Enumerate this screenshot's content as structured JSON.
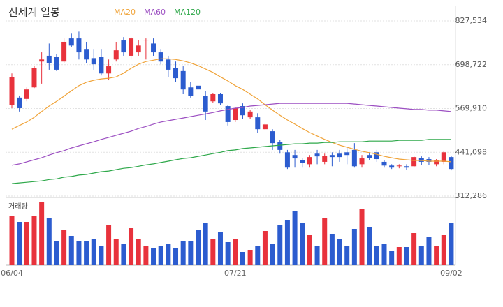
{
  "chart_data": {
    "type": "candlestick",
    "title": "신세계 일봉",
    "volume_label": "거래량",
    "up_color": "#e8323c",
    "down_color": "#2c5ccf",
    "categories": [
      "06/04",
      null,
      null,
      null,
      null,
      null,
      null,
      null,
      null,
      null,
      null,
      null,
      null,
      null,
      null,
      null,
      null,
      null,
      null,
      null,
      null,
      null,
      null,
      null,
      null,
      null,
      null,
      null,
      null,
      null,
      "07/21",
      null,
      null,
      null,
      null,
      null,
      null,
      null,
      null,
      null,
      null,
      null,
      null,
      null,
      null,
      null,
      null,
      null,
      null,
      null,
      null,
      null,
      null,
      null,
      null,
      null,
      null,
      null,
      null,
      "09/02"
    ],
    "open": [
      581000,
      602000,
      598000,
      632000,
      708000,
      725000,
      721000,
      708000,
      776000,
      776000,
      745000,
      718000,
      721000,
      673000,
      714000,
      770000,
      725000,
      735000,
      770000,
      761000,
      735000,
      714000,
      688000,
      680000,
      632000,
      637000,
      606000,
      591000,
      612000,
      577000,
      536000,
      577000,
      544000,
      544000,
      509000,
      503000,
      472000,
      441000,
      433000,
      417000,
      406000,
      437000,
      413000,
      433000,
      437000,
      441000,
      448000,
      406000,
      433000,
      441000,
      413000,
      402000,
      400000,
      400000,
      400000,
      425000,
      421000,
      406000,
      413000,
      427000
    ],
    "high": [
      673000,
      608000,
      632000,
      694000,
      735000,
      761000,
      729000,
      776000,
      790000,
      796000,
      766000,
      745000,
      745000,
      714000,
      766000,
      780000,
      780000,
      770000,
      776000,
      776000,
      745000,
      725000,
      708000,
      694000,
      647000,
      643000,
      622000,
      616000,
      616000,
      581000,
      575000,
      585000,
      565000,
      556000,
      527000,
      509000,
      478000,
      448000,
      448000,
      425000,
      433000,
      448000,
      437000,
      441000,
      448000,
      454000,
      468000,
      433000,
      441000,
      448000,
      417000,
      406000,
      406000,
      406000,
      431000,
      429000,
      427000,
      421000,
      445000,
      431000
    ],
    "low": [
      571000,
      561000,
      591000,
      630000,
      643000,
      684000,
      680000,
      704000,
      751000,
      714000,
      704000,
      684000,
      667000,
      653000,
      708000,
      725000,
      714000,
      725000,
      714000,
      725000,
      700000,
      663000,
      647000,
      612000,
      602000,
      622000,
      536000,
      587000,
      581000,
      520000,
      530000,
      540000,
      540000,
      499000,
      505000,
      448000,
      437000,
      392000,
      396000,
      396000,
      396000,
      406000,
      406000,
      400000,
      413000,
      406000,
      396000,
      396000,
      417000,
      413000,
      396000,
      392000,
      394000,
      390000,
      396000,
      404000,
      404000,
      400000,
      406000,
      388000
    ],
    "close": [
      663000,
      571000,
      626000,
      688000,
      714000,
      704000,
      684000,
      766000,
      755000,
      735000,
      714000,
      700000,
      673000,
      694000,
      741000,
      735000,
      776000,
      755000,
      772000,
      735000,
      708000,
      684000,
      659000,
      626000,
      606000,
      626000,
      561000,
      612000,
      585000,
      530000,
      571000,
      550000,
      561000,
      509000,
      523000,
      468000,
      448000,
      396000,
      423000,
      409000,
      427000,
      429000,
      431000,
      427000,
      427000,
      433000,
      400000,
      423000,
      425000,
      421000,
      402000,
      396000,
      402000,
      396000,
      427000,
      413000,
      413000,
      417000,
      441000,
      392000
    ],
    "volume": [
      71,
      62,
      62,
      71,
      90,
      68,
      35,
      50,
      42,
      35,
      35,
      38,
      28,
      57,
      38,
      30,
      53,
      38,
      28,
      25,
      28,
      31,
      25,
      35,
      35,
      50,
      61,
      38,
      47,
      33,
      38,
      19,
      22,
      27,
      49,
      31,
      58,
      64,
      77,
      60,
      43,
      28,
      67,
      45,
      37,
      28,
      52,
      80,
      55,
      28,
      31,
      20,
      26,
      26,
      46,
      28,
      40,
      28,
      43,
      60
    ],
    "volume_ylim": [
      0,
      90
    ],
    "series": [
      {
        "name": "MA20",
        "color": "#f0a43a",
        "values": [
          509000,
          520000,
          530000,
          544000,
          561000,
          577000,
          591000,
          606000,
          622000,
          637000,
          647000,
          653000,
          657000,
          659000,
          663000,
          674000,
          688000,
          700000,
          708000,
          712000,
          716000,
          716000,
          714000,
          710000,
          704000,
          696000,
          686000,
          676000,
          663000,
          651000,
          637000,
          626000,
          612000,
          598000,
          581000,
          565000,
          550000,
          536000,
          524000,
          511000,
          499000,
          489000,
          479000,
          470000,
          462000,
          456000,
          450000,
          444000,
          440000,
          435000,
          429000,
          425000,
          421000,
          419000,
          417000,
          417000,
          415000,
          415000,
          415000,
          413000
        ]
      },
      {
        "name": "MA60",
        "color": "#9c4fc2",
        "values": [
          403000,
          407000,
          413000,
          419000,
          425000,
          433000,
          440000,
          446000,
          454000,
          460000,
          466000,
          472000,
          479000,
          485000,
          491000,
          497000,
          503000,
          511000,
          517000,
          524000,
          530000,
          534000,
          538000,
          542000,
          546000,
          550000,
          554000,
          558000,
          563000,
          567000,
          571000,
          573000,
          577000,
          579000,
          581000,
          583000,
          585000,
          585000,
          585000,
          585000,
          585000,
          585000,
          585000,
          585000,
          585000,
          585000,
          583000,
          581000,
          579000,
          577000,
          575000,
          573000,
          571000,
          569000,
          567000,
          567000,
          565000,
          565000,
          563000,
          561000
        ]
      },
      {
        "name": "MA120",
        "color": "#2ea84a",
        "values": [
          349000,
          351000,
          353000,
          355000,
          357000,
          361000,
          363000,
          368000,
          370000,
          374000,
          376000,
          380000,
          384000,
          386000,
          390000,
          394000,
          396000,
          400000,
          404000,
          407000,
          411000,
          415000,
          419000,
          423000,
          425000,
          429000,
          433000,
          437000,
          441000,
          446000,
          448000,
          452000,
          454000,
          456000,
          458000,
          460000,
          462000,
          464000,
          466000,
          466000,
          468000,
          468000,
          470000,
          470000,
          472000,
          472000,
          472000,
          472000,
          474000,
          474000,
          474000,
          474000,
          476000,
          476000,
          476000,
          476000,
          479000,
          479000,
          479000,
          479000
        ]
      }
    ],
    "ylim": [
      312286,
      827534
    ],
    "yticks": [
      {
        "value": 312286,
        "label": "312,286"
      },
      {
        "value": 441098,
        "label": "441,098"
      },
      {
        "value": 569910,
        "label": "569,910"
      },
      {
        "value": 698722,
        "label": "698,722"
      },
      {
        "value": 827534,
        "label": "827,534"
      }
    ],
    "grid": true
  }
}
